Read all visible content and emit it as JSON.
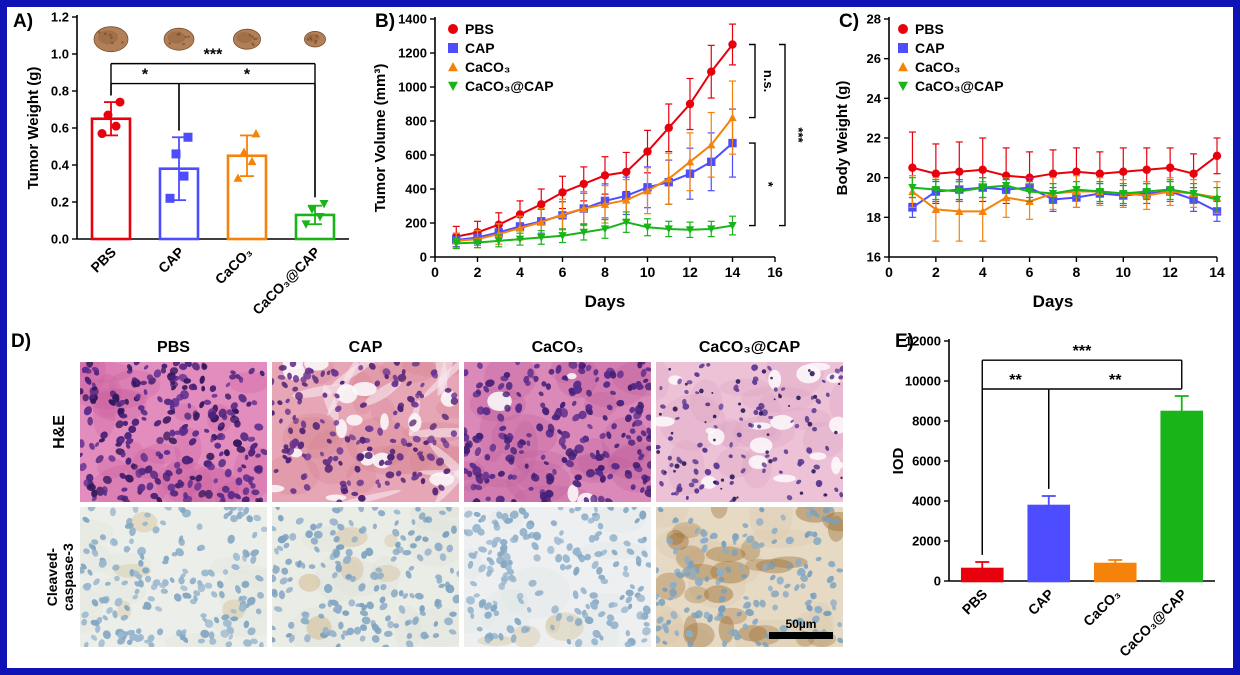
{
  "figure": {
    "border_color": "#0f12b5",
    "background": "#ffffff"
  },
  "groups": [
    {
      "name": "PBS",
      "color": "#e8000d",
      "marker": "circle"
    },
    {
      "name": "CAP",
      "color": "#4d4dff",
      "marker": "square"
    },
    {
      "name": "CaCO₃",
      "color": "#f5820a",
      "marker": "triangle-up"
    },
    {
      "name": "CaCO₃@CAP",
      "color": "#18b418",
      "marker": "triangle-down"
    }
  ],
  "panels": {
    "a": {
      "label": "A)"
    },
    "b": {
      "label": "B)"
    },
    "c": {
      "label": "C)"
    },
    "d": {
      "label": "D)",
      "column_headers": [
        "PBS",
        "CAP",
        "CaCO₃",
        "CaCO₃@CAP"
      ],
      "he_label": "H&E",
      "caspase_label_line1": "Cleaved-",
      "caspase_label_line2": "caspase-3",
      "scale_bar_label": "50µm"
    },
    "e": {
      "label": "E)"
    }
  },
  "chart_data": [
    {
      "id": "tumor_weight",
      "type": "bar",
      "panel": "A",
      "ylabel": "Tumor Weight (g)",
      "categories": [
        "PBS",
        "CAP",
        "CaCO₃",
        "CaCO₃@CAP"
      ],
      "values": [
        0.65,
        0.38,
        0.45,
        0.13
      ],
      "errors": [
        0.09,
        0.17,
        0.11,
        0.05
      ],
      "points": [
        [
          0.57,
          0.61,
          0.67,
          0.74
        ],
        [
          0.22,
          0.34,
          0.46,
          0.55
        ],
        [
          0.33,
          0.42,
          0.47,
          0.57
        ],
        [
          0.08,
          0.12,
          0.16,
          0.19
        ]
      ],
      "ylim": [
        0,
        1.2
      ],
      "yticks": [
        0,
        0.2,
        0.4,
        0.6,
        0.8,
        1,
        1.2
      ],
      "ytick_decimals": 1,
      "significance": [
        {
          "from": 0,
          "to": 3,
          "label": "***"
        },
        {
          "from": 0,
          "to": 1,
          "label": "*"
        },
        {
          "from": 1,
          "to": 3,
          "label": "*"
        }
      ]
    },
    {
      "id": "tumor_volume",
      "type": "line",
      "panel": "B",
      "xlabel": "Days",
      "ylabel": "Tumor Volume (mm³)",
      "x": [
        1,
        2,
        3,
        4,
        5,
        6,
        7,
        8,
        9,
        10,
        11,
        12,
        13,
        14
      ],
      "xlim": [
        0,
        16
      ],
      "xticks": [
        0,
        2,
        4,
        6,
        8,
        10,
        12,
        14,
        16
      ],
      "ylim": [
        0,
        1400
      ],
      "yticks": [
        0,
        200,
        400,
        600,
        800,
        1000,
        1200,
        1400
      ],
      "legend_position": "top-left",
      "series": [
        {
          "name": "PBS",
          "values": [
            120,
            145,
            190,
            250,
            310,
            380,
            430,
            480,
            500,
            620,
            760,
            900,
            1090,
            1250
          ],
          "errors": [
            60,
            65,
            70,
            80,
            90,
            95,
            100,
            110,
            115,
            125,
            140,
            150,
            155,
            120
          ]
        },
        {
          "name": "CAP",
          "values": [
            100,
            115,
            145,
            180,
            210,
            245,
            285,
            330,
            360,
            410,
            440,
            490,
            560,
            670
          ],
          "errors": [
            40,
            45,
            50,
            60,
            70,
            80,
            90,
            100,
            110,
            120,
            130,
            150,
            170,
            200
          ]
        },
        {
          "name": "CaCO₃",
          "values": [
            95,
            105,
            135,
            170,
            205,
            250,
            285,
            310,
            335,
            390,
            460,
            560,
            660,
            820
          ],
          "errors": [
            45,
            50,
            60,
            70,
            80,
            90,
            100,
            110,
            120,
            135,
            150,
            170,
            190,
            215
          ]
        },
        {
          "name": "CaCO₃@CAP",
          "values": [
            80,
            85,
            95,
            105,
            115,
            125,
            145,
            165,
            205,
            175,
            165,
            160,
            165,
            185
          ],
          "errors": [
            30,
            30,
            35,
            35,
            40,
            40,
            45,
            55,
            60,
            50,
            45,
            45,
            45,
            55
          ]
        }
      ],
      "significance": [
        {
          "pair": [
            "PBS",
            "CaCO₃"
          ],
          "label": "n.s."
        },
        {
          "pair": [
            "CAP",
            "CaCO₃@CAP"
          ],
          "label": "*"
        },
        {
          "pair": [
            "PBS",
            "CaCO₃@CAP"
          ],
          "label": "***"
        }
      ]
    },
    {
      "id": "body_weight",
      "type": "line",
      "panel": "C",
      "xlabel": "Days",
      "ylabel": "Body Weight (g)",
      "x": [
        1,
        2,
        3,
        4,
        5,
        6,
        7,
        8,
        9,
        10,
        11,
        12,
        13,
        14
      ],
      "xlim": [
        0,
        14
      ],
      "xticks": [
        0,
        2,
        4,
        6,
        8,
        10,
        12,
        14
      ],
      "ylim": [
        16,
        28
      ],
      "yticks": [
        16,
        18,
        20,
        22,
        24,
        26,
        28
      ],
      "legend_position": "top-left",
      "series": [
        {
          "name": "PBS",
          "values": [
            20.5,
            20.2,
            20.3,
            20.4,
            20.1,
            20.0,
            20.2,
            20.3,
            20.2,
            20.3,
            20.4,
            20.5,
            20.2,
            21.1
          ],
          "errors": [
            1.8,
            1.5,
            1.5,
            1.6,
            1.4,
            1.3,
            1.2,
            1.2,
            1.1,
            1.2,
            1.1,
            1.0,
            1.0,
            0.9
          ]
        },
        {
          "name": "CAP",
          "values": [
            18.5,
            19.3,
            19.4,
            19.5,
            19.4,
            19.5,
            18.9,
            19.0,
            19.2,
            19.1,
            19.2,
            19.3,
            18.9,
            18.3
          ],
          "errors": [
            0.5,
            0.5,
            0.5,
            0.5,
            0.5,
            0.5,
            0.6,
            0.5,
            0.5,
            0.5,
            0.5,
            0.5,
            0.6,
            0.5
          ]
        },
        {
          "name": "CaCO₃",
          "values": [
            19.3,
            18.4,
            18.3,
            18.3,
            19.0,
            18.8,
            19.2,
            19.3,
            19.3,
            19.2,
            19.1,
            19.3,
            19.2,
            19.0
          ],
          "errors": [
            0.8,
            1.6,
            1.5,
            1.5,
            1.0,
            0.9,
            0.8,
            0.8,
            0.7,
            0.7,
            0.7,
            0.7,
            0.7,
            0.8
          ]
        },
        {
          "name": "CaCO₃@CAP",
          "values": [
            19.5,
            19.4,
            19.3,
            19.5,
            19.6,
            19.3,
            19.2,
            19.4,
            19.3,
            19.2,
            19.3,
            19.4,
            19.2,
            18.9
          ],
          "errors": [
            0.5,
            0.5,
            0.5,
            0.5,
            0.4,
            0.5,
            0.5,
            0.4,
            0.5,
            0.5,
            0.4,
            0.5,
            0.5,
            0.6
          ]
        }
      ],
      "significance": []
    },
    {
      "id": "iod",
      "type": "bar",
      "panel": "E",
      "ylabel": "IOD",
      "categories": [
        "PBS",
        "CAP",
        "CaCO₃",
        "CaCO₃@CAP"
      ],
      "values": [
        600,
        3750,
        850,
        8450
      ],
      "errors": [
        350,
        500,
        200,
        800
      ],
      "ylim": [
        0,
        12000
      ],
      "yticks": [
        0,
        2000,
        4000,
        6000,
        8000,
        10000,
        12000
      ],
      "ytick_decimals": 0,
      "significance": [
        {
          "from": 0,
          "to": 3,
          "label": "***"
        },
        {
          "from": 0,
          "to": 1,
          "label": "**"
        },
        {
          "from": 1,
          "to": 3,
          "label": "**"
        }
      ]
    }
  ]
}
